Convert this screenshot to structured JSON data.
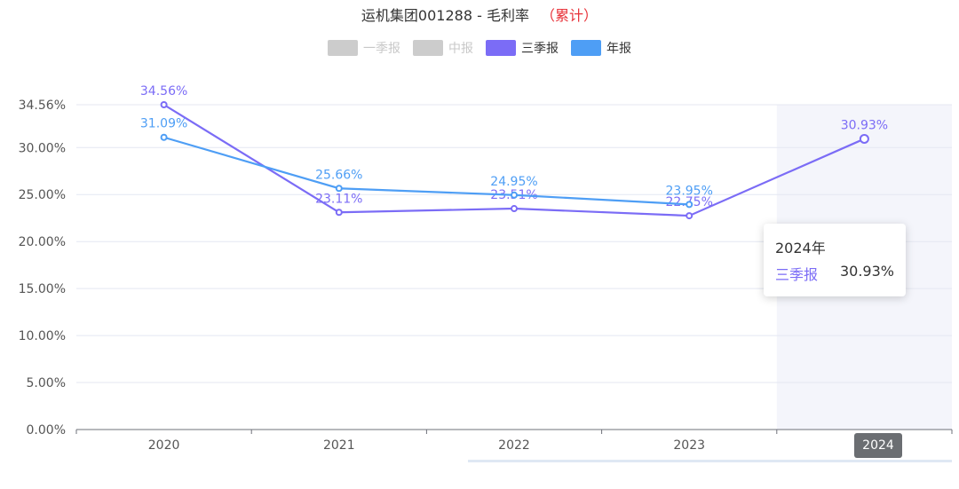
{
  "title": {
    "main": "运机集团001288 - 毛利率",
    "accent": "（累计）"
  },
  "legend": [
    {
      "label": "一季报",
      "color": "#cccccc",
      "active": false
    },
    {
      "label": "中报",
      "color": "#cccccc",
      "active": false
    },
    {
      "label": "三季报",
      "color": "#7b6cf6",
      "active": true
    },
    {
      "label": "年报",
      "color": "#4e9ef5",
      "active": true
    }
  ],
  "tooltip": {
    "title": "2024年",
    "series": "三季报",
    "value": "30.93%"
  },
  "selected_x": "2024",
  "chart_data": {
    "type": "line",
    "title": "运机集团001288 - 毛利率 （累计）",
    "categories": [
      "2020",
      "2021",
      "2022",
      "2023",
      "2024"
    ],
    "y_ticks": [
      "0.00%",
      "5.00%",
      "10.00%",
      "15.00%",
      "20.00%",
      "25.00%",
      "30.00%",
      "34.56%"
    ],
    "ylim": [
      0,
      34.56
    ],
    "grid": true,
    "legend_position": "top",
    "series": [
      {
        "name": "三季报",
        "color": "#7b6cf6",
        "values": [
          34.56,
          23.11,
          23.51,
          22.75,
          30.93
        ],
        "labels": [
          "34.56%",
          "23.11%",
          "23.51%",
          "22.75%",
          "30.93%"
        ]
      },
      {
        "name": "年报",
        "color": "#4e9ef5",
        "values": [
          31.09,
          25.66,
          24.95,
          23.95,
          null
        ],
        "labels": [
          "31.09%",
          "25.66%",
          "24.95%",
          "23.95%",
          ""
        ]
      }
    ]
  }
}
